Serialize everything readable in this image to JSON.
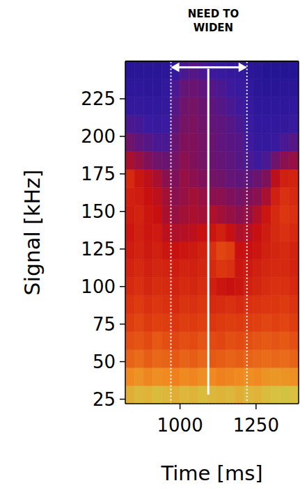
{
  "chart_data": {
    "type": "heatmap",
    "title": "NEED TO WIDEN",
    "x_label": "Time [ms]",
    "y_label": "Signal [kHz]",
    "xlim": [
      820,
      1390
    ],
    "ylim": [
      22,
      250
    ],
    "xticks": [
      1000,
      1250
    ],
    "yticks": [
      25,
      50,
      75,
      100,
      125,
      150,
      175,
      200,
      225
    ],
    "x_edges": [
      820,
      850,
      880,
      910,
      940,
      970,
      1000,
      1030,
      1060,
      1090,
      1120,
      1150,
      1180,
      1210,
      1240,
      1270,
      1300,
      1330,
      1360,
      1390
    ],
    "y_edges": [
      22,
      34,
      46,
      58,
      70,
      82,
      94,
      106,
      118,
      130,
      142,
      154,
      166,
      178,
      190,
      202,
      214,
      226,
      238,
      250
    ],
    "clim": [
      0,
      100
    ],
    "cells": [
      [
        88,
        90,
        89,
        91,
        90,
        88,
        90,
        89,
        91,
        90,
        89,
        90,
        88,
        90,
        89,
        91,
        92,
        93,
        92
      ],
      [
        80,
        82,
        79,
        81,
        80,
        78,
        80,
        79,
        81,
        80,
        78,
        79,
        80,
        81,
        80,
        82,
        83,
        82,
        81
      ],
      [
        72,
        74,
        71,
        73,
        72,
        70,
        72,
        71,
        73,
        70,
        71,
        72,
        71,
        72,
        73,
        74,
        73,
        74,
        72
      ],
      [
        68,
        69,
        67,
        70,
        68,
        66,
        68,
        67,
        69,
        67,
        66,
        68,
        67,
        68,
        69,
        70,
        69,
        70,
        68
      ],
      [
        64,
        66,
        63,
        65,
        64,
        62,
        64,
        63,
        65,
        62,
        63,
        64,
        63,
        64,
        65,
        66,
        65,
        66,
        64
      ],
      [
        61,
        63,
        60,
        62,
        60,
        58,
        61,
        60,
        62,
        58,
        59,
        60,
        58,
        60,
        61,
        62,
        62,
        63,
        61
      ],
      [
        58,
        60,
        57,
        59,
        58,
        56,
        58,
        57,
        59,
        55,
        52,
        50,
        52,
        55,
        57,
        59,
        60,
        60,
        58
      ],
      [
        56,
        58,
        55,
        57,
        56,
        54,
        56,
        55,
        57,
        58,
        62,
        60,
        52,
        53,
        55,
        57,
        58,
        58,
        56
      ],
      [
        54,
        56,
        53,
        55,
        52,
        50,
        52,
        53,
        55,
        60,
        66,
        64,
        50,
        50,
        52,
        55,
        57,
        58,
        56
      ],
      [
        52,
        55,
        52,
        53,
        48,
        46,
        47,
        48,
        50,
        52,
        55,
        50,
        46,
        47,
        50,
        54,
        58,
        60,
        58
      ],
      [
        54,
        56,
        52,
        50,
        45,
        42,
        44,
        45,
        44,
        46,
        44,
        42,
        40,
        42,
        46,
        52,
        58,
        62,
        60
      ],
      [
        55,
        54,
        50,
        48,
        44,
        40,
        42,
        44,
        42,
        40,
        40,
        38,
        36,
        38,
        40,
        45,
        55,
        60,
        58
      ],
      [
        58,
        52,
        48,
        45,
        40,
        38,
        42,
        40,
        38,
        36,
        35,
        33,
        32,
        32,
        34,
        38,
        48,
        55,
        56
      ],
      [
        45,
        42,
        38,
        35,
        34,
        36,
        40,
        38,
        36,
        34,
        33,
        32,
        30,
        28,
        26,
        28,
        35,
        40,
        42
      ],
      [
        35,
        32,
        30,
        28,
        28,
        34,
        38,
        38,
        36,
        34,
        32,
        31,
        30,
        26,
        22,
        22,
        24,
        28,
        30
      ],
      [
        28,
        27,
        25,
        24,
        25,
        32,
        36,
        37,
        35,
        33,
        32,
        30,
        28,
        24,
        20,
        20,
        20,
        22,
        24
      ],
      [
        22,
        22,
        20,
        20,
        22,
        30,
        35,
        36,
        34,
        32,
        30,
        28,
        26,
        22,
        18,
        18,
        18,
        18,
        20
      ],
      [
        18,
        18,
        17,
        17,
        20,
        28,
        33,
        34,
        32,
        30,
        28,
        26,
        24,
        20,
        16,
        15,
        15,
        16,
        16
      ],
      [
        14,
        14,
        14,
        14,
        16,
        22,
        28,
        30,
        28,
        26,
        24,
        22,
        20,
        16,
        14,
        12,
        12,
        12,
        12
      ]
    ],
    "window": {
      "x": [
        970,
        1220
      ]
    },
    "arrow": {
      "x": [
        970,
        1220
      ],
      "y": 246
    },
    "line": {
      "x": 1093,
      "y": [
        28,
        245
      ]
    }
  }
}
